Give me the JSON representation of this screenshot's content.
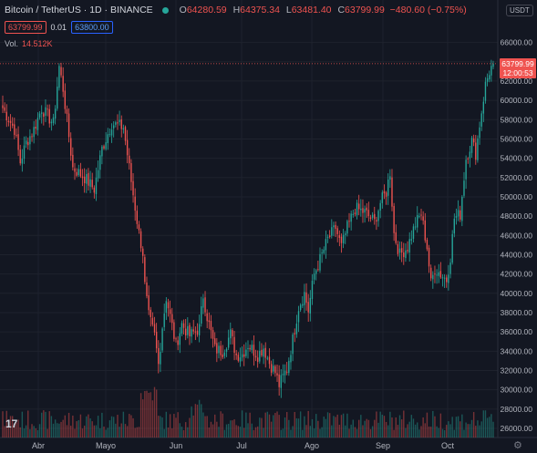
{
  "symbol": {
    "name": "Bitcoin / TetherUS",
    "interval": "1D",
    "exchange": "BINANCE"
  },
  "ohlc": {
    "o_label": "O",
    "o": "64280.59",
    "h_label": "H",
    "h": "64375.34",
    "l_label": "L",
    "l": "63481.40",
    "c_label": "C",
    "c": "63799.99",
    "change": "−480.60 (−0.75%)"
  },
  "trade": {
    "sell": "63799.99",
    "spread": "0.01",
    "buy": "63800.00"
  },
  "volume": {
    "label": "Vol.",
    "value": "14.512K"
  },
  "currency": "USDT",
  "last_price": {
    "value": "63799.99",
    "countdown": "12:00:53"
  },
  "icons": {
    "settings": "gear-icon",
    "logo": "tradingview-logo",
    "status": "market-open-dot"
  },
  "colors": {
    "up": "#26a69a",
    "down": "#ef5350",
    "background": "#131722",
    "grid": "#1e222d"
  },
  "chart_data": {
    "type": "candlestick",
    "yaxis_ticks": [
      "26000.00",
      "28000.00",
      "30000.00",
      "32000.00",
      "34000.00",
      "36000.00",
      "38000.00",
      "40000.00",
      "42000.00",
      "44000.00",
      "46000.00",
      "48000.00",
      "50000.00",
      "52000.00",
      "54000.00",
      "56000.00",
      "58000.00",
      "60000.00",
      "62000.00",
      "64000.00",
      "66000.00"
    ],
    "ylim": [
      25000,
      67000
    ],
    "xaxis_ticks": [
      "Abr",
      "Mayo",
      "Jun",
      "Jul",
      "Ago",
      "Sep",
      "Oct"
    ],
    "anchors": [
      [
        0,
        59200
      ],
      [
        6,
        57000
      ],
      [
        9,
        53600
      ],
      [
        12,
        55600
      ],
      [
        16,
        57000
      ],
      [
        20,
        59200
      ],
      [
        26,
        57600
      ],
      [
        29,
        63500
      ],
      [
        31,
        61200
      ],
      [
        36,
        53000
      ],
      [
        42,
        52000
      ],
      [
        47,
        50800
      ],
      [
        51,
        55000
      ],
      [
        56,
        57600
      ],
      [
        62,
        57200
      ],
      [
        66,
        51600
      ],
      [
        70,
        46200
      ],
      [
        72,
        44200
      ],
      [
        73,
        40800
      ],
      [
        75,
        37600
      ],
      [
        78,
        35600
      ],
      [
        80,
        32600
      ],
      [
        82,
        36600
      ],
      [
        84,
        39600
      ],
      [
        86,
        37600
      ],
      [
        89,
        34600
      ],
      [
        92,
        36800
      ],
      [
        96,
        35600
      ],
      [
        101,
        36400
      ],
      [
        103,
        39800
      ],
      [
        105,
        37600
      ],
      [
        109,
        34200
      ],
      [
        113,
        34000
      ],
      [
        117,
        35800
      ],
      [
        120,
        33600
      ],
      [
        123,
        33700
      ],
      [
        126,
        34700
      ],
      [
        131,
        33600
      ],
      [
        134,
        34400
      ],
      [
        137,
        32800
      ],
      [
        140,
        31800
      ],
      [
        142,
        30500
      ],
      [
        146,
        32200
      ],
      [
        149,
        35200
      ],
      [
        152,
        38600
      ],
      [
        155,
        40000
      ],
      [
        157,
        38200
      ],
      [
        160,
        42000
      ],
      [
        164,
        44000
      ],
      [
        167,
        45600
      ],
      [
        171,
        46800
      ],
      [
        174,
        44800
      ],
      [
        177,
        46800
      ],
      [
        181,
        48800
      ],
      [
        186,
        48400
      ],
      [
        191,
        47400
      ],
      [
        194,
        49400
      ],
      [
        197,
        50500
      ],
      [
        199,
        52600
      ],
      [
        201,
        46200
      ],
      [
        204,
        44000
      ],
      [
        208,
        44800
      ],
      [
        212,
        47200
      ],
      [
        215,
        48200
      ],
      [
        218,
        44800
      ],
      [
        220,
        41000
      ],
      [
        222,
        42600
      ],
      [
        225,
        42000
      ],
      [
        228,
        41400
      ],
      [
        230,
        43800
      ],
      [
        232,
        47800
      ],
      [
        235,
        48200
      ],
      [
        238,
        54000
      ],
      [
        241,
        55800
      ],
      [
        243,
        54500
      ],
      [
        245,
        57500
      ],
      [
        248,
        61600
      ],
      [
        250,
        63000
      ],
      [
        252,
        63800
      ]
    ]
  }
}
